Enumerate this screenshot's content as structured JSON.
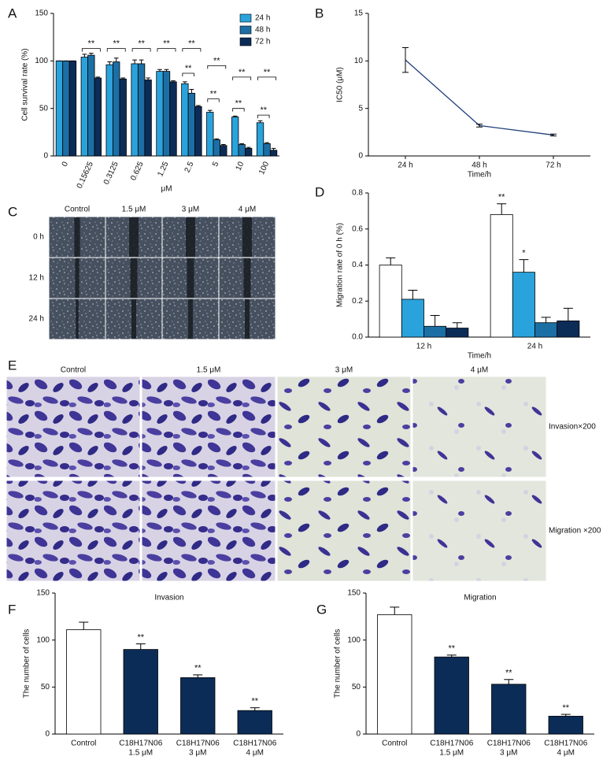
{
  "chart_data": [
    {
      "type": "bar",
      "label": "A",
      "ylabel": "Cell survival rate (%)",
      "xlabel": "μM",
      "categories": [
        "0",
        "0.15625",
        "0.3125",
        "0.625",
        "1.25",
        "2.5",
        "5",
        "10",
        "100"
      ],
      "series": [
        {
          "name": "24 h",
          "color": "#2aa3dc",
          "values": [
            100,
            104,
            96,
            97,
            89,
            76,
            46,
            41,
            35
          ],
          "errors": [
            0,
            3,
            3,
            4,
            2,
            2,
            2,
            1,
            2
          ]
        },
        {
          "name": "48 h",
          "color": "#1c6fa5",
          "values": [
            100,
            106,
            99,
            97,
            89,
            66,
            17,
            12,
            13
          ],
          "errors": [
            0,
            2,
            4,
            4,
            2,
            4,
            1,
            1,
            1
          ]
        },
        {
          "name": "72 h",
          "color": "#0c2c58",
          "values": [
            100,
            82,
            81,
            80,
            78,
            52,
            11,
            8,
            6
          ],
          "errors": [
            0,
            1,
            1,
            2,
            1,
            1,
            1,
            1,
            2
          ]
        }
      ],
      "brackets": [
        {
          "text": "**",
          "category": "0.15625",
          "from": "24 h",
          "to": "72 h",
          "y": 113
        },
        {
          "text": "**",
          "category": "0.3125",
          "from": "24 h",
          "to": "72 h",
          "y": 113
        },
        {
          "text": "**",
          "category": "0.625",
          "from": "24 h",
          "to": "72 h",
          "y": 113
        },
        {
          "text": "**",
          "category": "1.25",
          "from": "24 h",
          "to": "72 h",
          "y": 113
        },
        {
          "text": "**",
          "category": "2.5",
          "from": "24 h",
          "to": "72 h",
          "y": 113
        },
        {
          "text": "**",
          "category": "2.5",
          "from": "24 h",
          "to": "48 h",
          "y": 87
        },
        {
          "text": "**",
          "category": "5",
          "from": "24 h",
          "to": "72 h",
          "y": 95
        },
        {
          "text": "**",
          "category": "5",
          "from": "24 h",
          "to": "48 h",
          "y": 60
        },
        {
          "text": "**",
          "category": "10",
          "from": "24 h",
          "to": "72 h",
          "y": 83
        },
        {
          "text": "**",
          "category": "10",
          "from": "24 h",
          "to": "48 h",
          "y": 50
        },
        {
          "text": "**",
          "category": "100",
          "from": "24 h",
          "to": "72 h",
          "y": 83
        },
        {
          "text": "**",
          "category": "100",
          "from": "24 h",
          "to": "48 h",
          "y": 43
        }
      ],
      "ylim": [
        0,
        150
      ],
      "yticks": [
        0,
        50,
        100,
        150
      ],
      "legend": "upper right"
    },
    {
      "type": "line",
      "label": "B",
      "ylabel": "IC50 (μM)",
      "xlabel": "Time/h",
      "categories": [
        "24 h",
        "48 h",
        "72 h"
      ],
      "values": [
        10.1,
        3.2,
        2.2
      ],
      "errors": [
        1.3,
        0.15,
        0.1
      ],
      "color": "#1f3f7a",
      "ylim": [
        0,
        15
      ],
      "yticks": [
        0,
        5,
        10,
        15
      ]
    },
    {
      "type": "bar",
      "label": "D",
      "ylabel": "Migration rate of 0 h (%)",
      "xlabel": "Time/h",
      "categories": [
        "12 h",
        "24 h"
      ],
      "series": [
        {
          "color": "#ffffff",
          "values": [
            0.4,
            0.68
          ],
          "errors": [
            0.04,
            0.06
          ],
          "annotations": [
            null,
            "**"
          ]
        },
        {
          "color": "#2aa3dc",
          "values": [
            0.21,
            0.36
          ],
          "errors": [
            0.05,
            0.07
          ],
          "annotations": [
            null,
            "*"
          ]
        },
        {
          "color": "#1c6fa5",
          "values": [
            0.06,
            0.08
          ],
          "errors": [
            0.06,
            0.03
          ]
        },
        {
          "color": "#0c2c58",
          "values": [
            0.05,
            0.09
          ],
          "errors": [
            0.03,
            0.07
          ]
        }
      ],
      "ylim": [
        0,
        0.8
      ],
      "yticks": [
        {
          "value": 0,
          "label": "0.0"
        },
        0.2,
        0.4,
        0.6,
        0.8
      ]
    },
    {
      "type": "bar",
      "label": "F",
      "title": "Invasion",
      "ylabel": "The number of cells",
      "categories": [
        [
          "Control"
        ],
        [
          "C18H17N06",
          "1.5 μM"
        ],
        [
          "C18H17N06",
          "3 μM"
        ],
        [
          "C18H17N06",
          "4 μM"
        ]
      ],
      "values": [
        111,
        90,
        60,
        25
      ],
      "errors": [
        8,
        6,
        3,
        3
      ],
      "annotations": [
        null,
        "**",
        "**",
        "**"
      ],
      "colors": [
        "#ffffff",
        "#0c2c58",
        "#0c2c58",
        "#0c2c58"
      ],
      "ylim": [
        0,
        150
      ],
      "yticks": [
        0,
        50,
        100,
        150
      ]
    },
    {
      "type": "bar",
      "label": "G",
      "title": "Migration",
      "ylabel": "The number of cells",
      "categories": [
        [
          "Control"
        ],
        [
          "C18H17N06",
          "1.5 μM"
        ],
        [
          "C18H17N06",
          "3 μM"
        ],
        [
          "C18H17N06",
          "4 μM"
        ]
      ],
      "values": [
        127,
        82,
        53,
        19
      ],
      "errors": [
        8,
        2,
        5,
        2
      ],
      "annotations": [
        null,
        "**",
        "**",
        "**"
      ],
      "colors": [
        "#ffffff",
        "#0c2c58",
        "#0c2c58",
        "#0c2c58"
      ],
      "ylim": [
        0,
        150
      ],
      "yticks": [
        0,
        50,
        100,
        150
      ]
    }
  ],
  "image_panels": [
    {
      "label": "C",
      "columns": [
        "Control",
        "1.5 μM",
        "3 μM",
        "4 μM"
      ],
      "rows": [
        "0 h",
        "12 h",
        "24 h"
      ]
    },
    {
      "label": "E",
      "columns": [
        "Control",
        "1.5 μM",
        "3 μM",
        "4 μM"
      ],
      "rows": [
        "Invasion×200",
        "Migration ×200"
      ]
    }
  ]
}
